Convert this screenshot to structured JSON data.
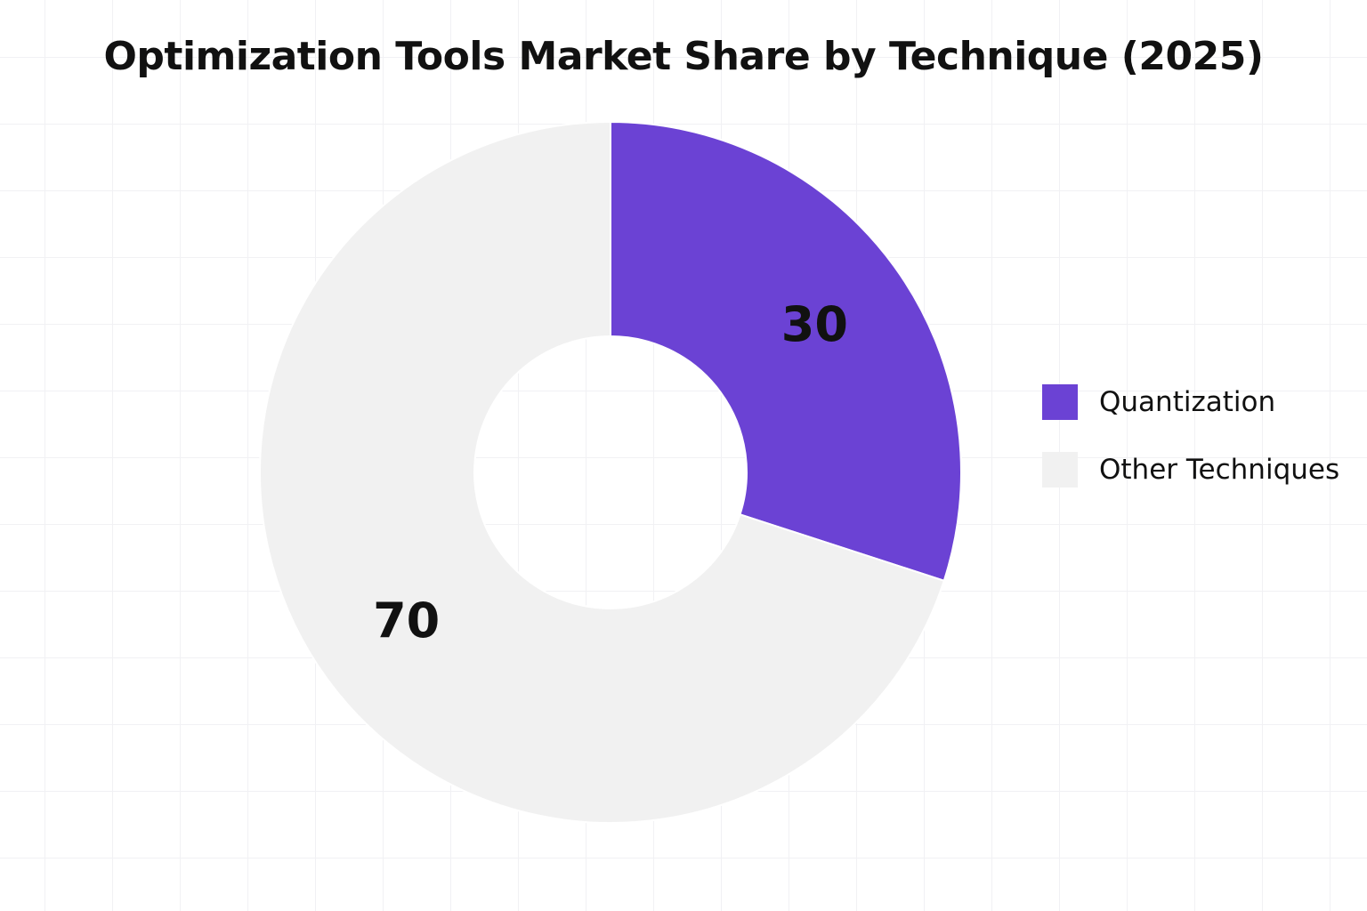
{
  "chart_data": {
    "type": "pie",
    "donut": true,
    "title": "Optimization Tools Market Share by Technique (2025)",
    "categories": [
      "Quantization",
      "Other Techniques"
    ],
    "values": [
      30,
      70
    ],
    "data_labels": [
      "30",
      "70"
    ],
    "colors": [
      "#6b42d4",
      "#f1f1f1"
    ],
    "legend": {
      "placement": "right",
      "entries": [
        "Quantization",
        "Other Techniques"
      ]
    },
    "start_angle_deg": 0,
    "direction": "clockwise",
    "grid": true
  }
}
